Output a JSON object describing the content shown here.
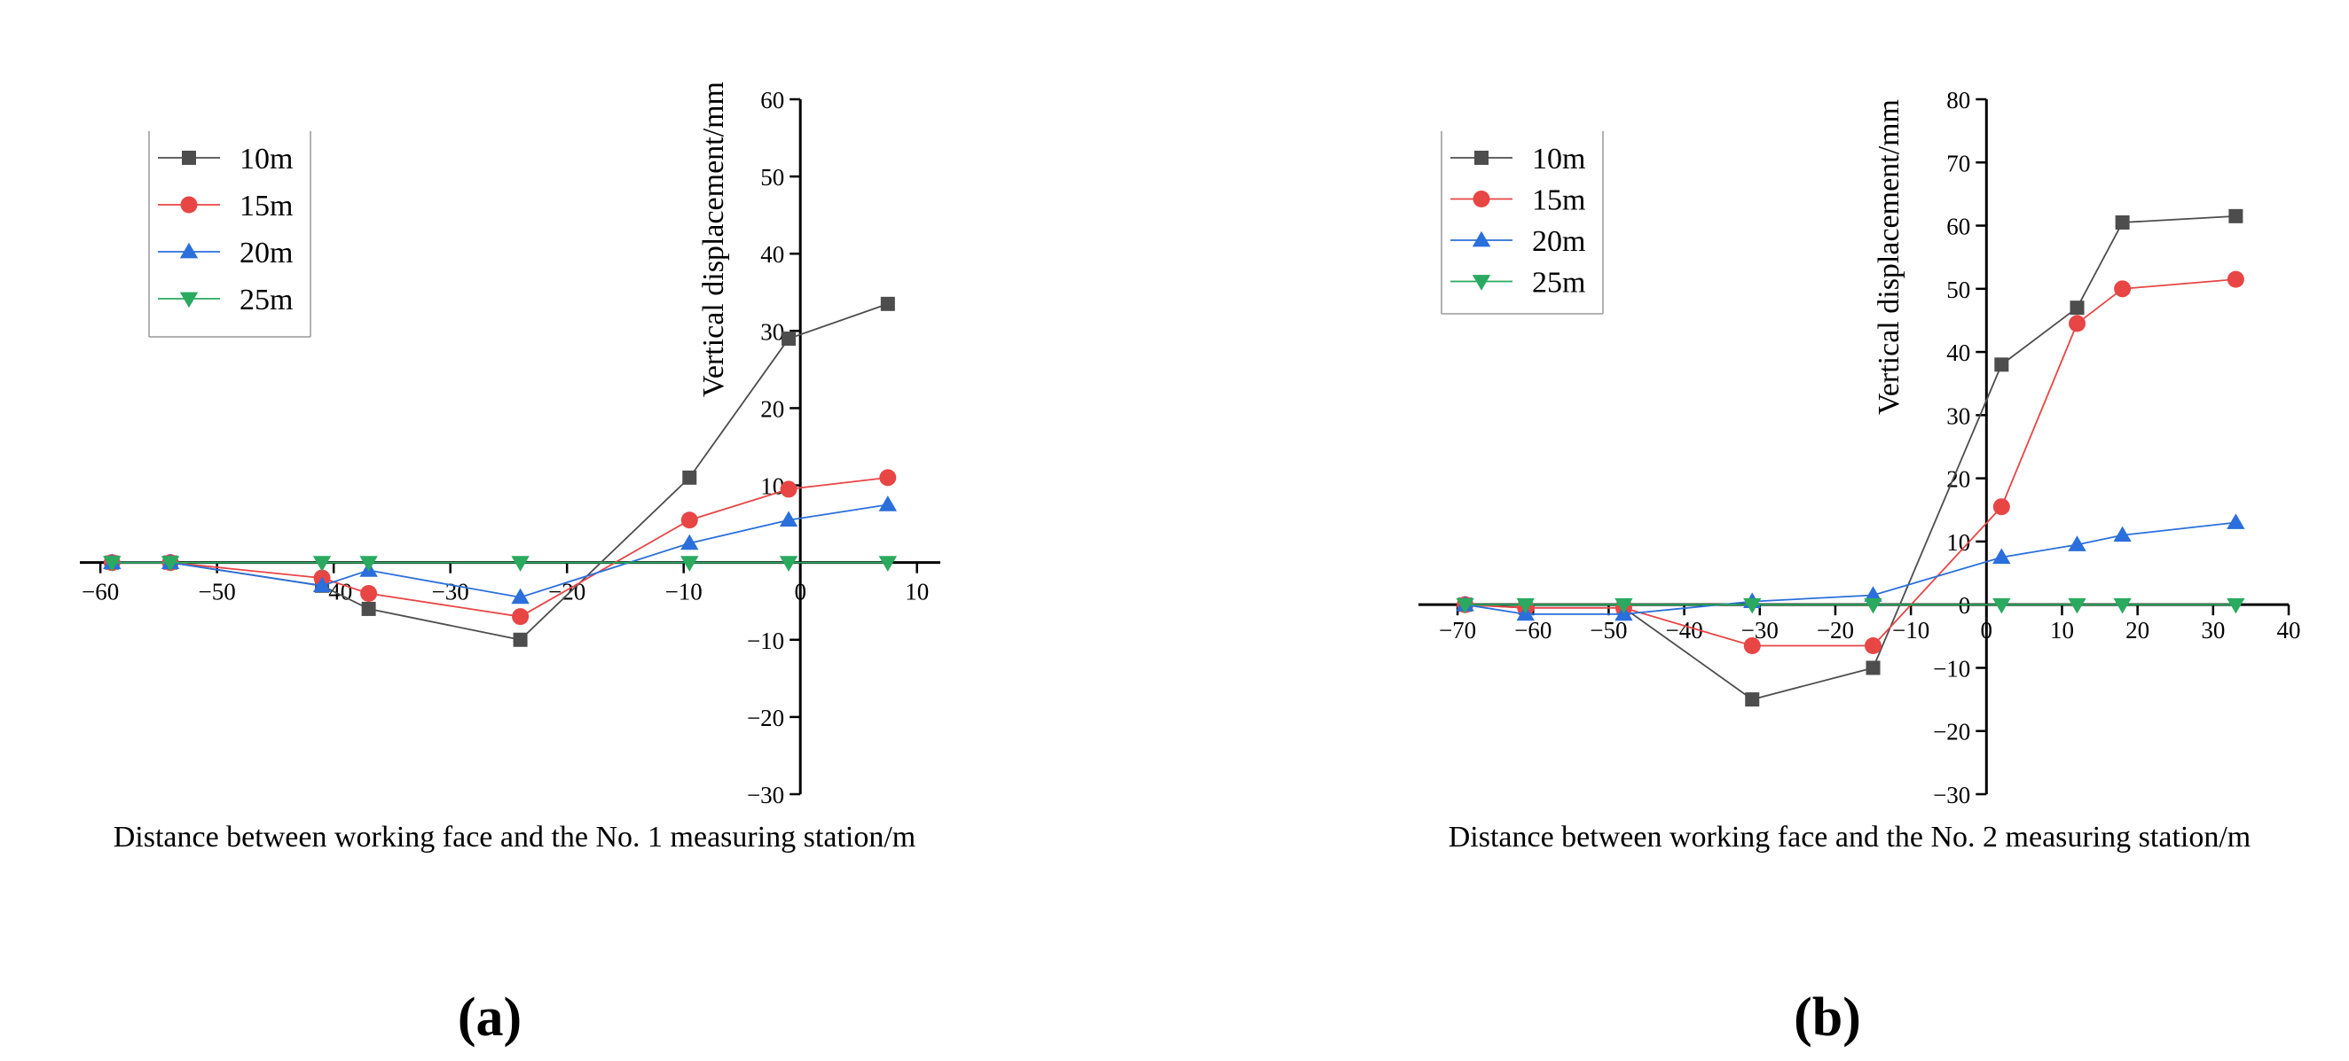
{
  "chart_data": [
    {
      "type": "line",
      "panel_label": "(a)",
      "xlabel": "Distance between working face and the No. 1 measuring station/m",
      "ylabel": "Vertical displacement/mm",
      "xlim": [
        -61,
        12
      ],
      "ylim": [
        -30,
        60
      ],
      "xticks": [
        -60,
        -50,
        -40,
        -30,
        -20,
        -10,
        0,
        10
      ],
      "yticks": [
        -30,
        -20,
        -10,
        10,
        20,
        30,
        40,
        50,
        60
      ],
      "xtick_labels": [
        "−60",
        "−50",
        "−40",
        "−30",
        "−20",
        "−10",
        "0",
        "10"
      ],
      "ytick_labels": [
        "−30",
        "−20",
        "−10",
        "10",
        "20",
        "30",
        "40",
        "50",
        "60"
      ],
      "legend_position": "top-left",
      "series": [
        {
          "name": "10m",
          "color": "#4d4d4d",
          "marker": "square",
          "x": [
            -59,
            -54,
            -41,
            -37,
            -24,
            -9.5,
            -1,
            7.5
          ],
          "y": [
            0,
            0,
            -3,
            -6,
            -10,
            11,
            29,
            33.5
          ]
        },
        {
          "name": "15m",
          "color": "#e84545",
          "marker": "circle",
          "x": [
            -59,
            -54,
            -41,
            -37,
            -24,
            -9.5,
            -1,
            7.5
          ],
          "y": [
            0,
            0,
            -2,
            -4,
            -7,
            5.5,
            9.5,
            11
          ]
        },
        {
          "name": "20m",
          "color": "#2a6fdb",
          "marker": "triangle-up",
          "x": [
            -59,
            -54,
            -41,
            -37,
            -24,
            -9.5,
            -1,
            7.5
          ],
          "y": [
            0,
            0,
            -3,
            -1,
            -4.5,
            2.5,
            5.5,
            7.5
          ]
        },
        {
          "name": "25m",
          "color": "#2aaa5f",
          "marker": "triangle-down",
          "x": [
            -59,
            -54,
            -41,
            -37,
            -24,
            -9.5,
            -1,
            7.5
          ],
          "y": [
            0,
            0,
            0,
            0,
            0,
            0,
            0,
            0
          ]
        }
      ]
    },
    {
      "type": "line",
      "panel_label": "(b)",
      "xlabel": "Distance between working face and the No. 2 measuring station/m",
      "ylabel": "Vertical displacement/mm",
      "xlim": [
        -74,
        40
      ],
      "ylim": [
        -30,
        80
      ],
      "xticks": [
        -70,
        -60,
        -50,
        -40,
        -30,
        -20,
        -10,
        0,
        10,
        20,
        30,
        40
      ],
      "yticks": [
        -30,
        -20,
        -10,
        0,
        10,
        20,
        30,
        40,
        50,
        60,
        70,
        80
      ],
      "xtick_labels": [
        "−70",
        "−60",
        "−50",
        "−40",
        "−30",
        "−20",
        "−10",
        "0",
        "10",
        "20",
        "30",
        "40"
      ],
      "ytick_labels": [
        "−30",
        "−20",
        "−10",
        "0",
        "10",
        "20",
        "30",
        "40",
        "50",
        "60",
        "70",
        "80"
      ],
      "legend_position": "top-left",
      "series": [
        {
          "name": "10m",
          "color": "#4d4d4d",
          "marker": "square",
          "x": [
            -69,
            -61,
            -48,
            -31,
            -15,
            2,
            12,
            18,
            33
          ],
          "y": [
            0,
            -0.5,
            -0.5,
            -15,
            -10,
            38,
            47,
            60.5,
            61.5
          ]
        },
        {
          "name": "15m",
          "color": "#e84545",
          "marker": "circle",
          "x": [
            -69,
            -61,
            -48,
            -31,
            -15,
            2,
            12,
            18,
            33
          ],
          "y": [
            0,
            -0.5,
            -0.5,
            -6.5,
            -6.5,
            15.5,
            44.5,
            50,
            51.5
          ]
        },
        {
          "name": "20m",
          "color": "#2a6fdb",
          "marker": "triangle-up",
          "x": [
            -69,
            -61,
            -48,
            -31,
            -15,
            2,
            12,
            18,
            33
          ],
          "y": [
            0,
            -1.5,
            -1.5,
            0.5,
            1.5,
            7.5,
            9.5,
            11,
            13
          ]
        },
        {
          "name": "25m",
          "color": "#2aaa5f",
          "marker": "triangle-down",
          "x": [
            -69,
            -61,
            -48,
            -31,
            -15,
            2,
            12,
            18,
            33
          ],
          "y": [
            0,
            0,
            0,
            0,
            0,
            0,
            0,
            0,
            0
          ]
        }
      ]
    }
  ]
}
